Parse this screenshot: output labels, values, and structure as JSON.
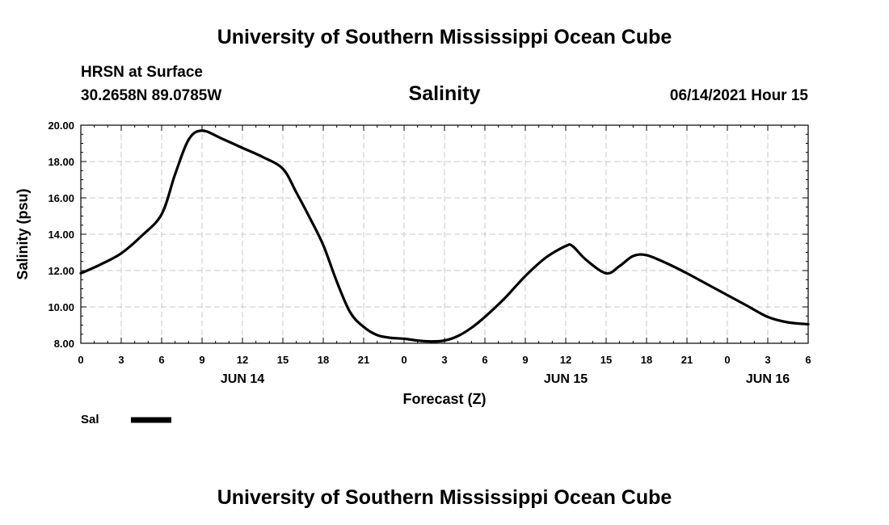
{
  "header": {
    "title": "University of Southern Mississippi Ocean Cube",
    "station": "HRSN at Surface",
    "location": "30.2658N  89.0785W",
    "run_time": "06/14/2021 Hour 15"
  },
  "footer": {
    "title": "University of Southern Mississippi Ocean Cube"
  },
  "chart_data": {
    "type": "line",
    "title": "Salinity",
    "xlabel": "Forecast (Z)",
    "ylabel": "Salinity (psu)",
    "x_unit": "hours",
    "xlim": [
      0,
      54
    ],
    "ylim": [
      8,
      20
    ],
    "grid": true,
    "legend_placement": "bottom-left",
    "x_ticks": [
      {
        "value": 0,
        "label": "0"
      },
      {
        "value": 3,
        "label": "3"
      },
      {
        "value": 6,
        "label": "6"
      },
      {
        "value": 9,
        "label": "9"
      },
      {
        "value": 12,
        "label": "12"
      },
      {
        "value": 15,
        "label": "15"
      },
      {
        "value": 18,
        "label": "18"
      },
      {
        "value": 21,
        "label": "21"
      },
      {
        "value": 24,
        "label": "0"
      },
      {
        "value": 27,
        "label": "3"
      },
      {
        "value": 30,
        "label": "6"
      },
      {
        "value": 33,
        "label": "9"
      },
      {
        "value": 36,
        "label": "12"
      },
      {
        "value": 39,
        "label": "15"
      },
      {
        "value": 42,
        "label": "18"
      },
      {
        "value": 45,
        "label": "21"
      },
      {
        "value": 48,
        "label": "0"
      },
      {
        "value": 51,
        "label": "3"
      },
      {
        "value": 54,
        "label": "6"
      }
    ],
    "date_labels": [
      {
        "value": 12,
        "label": "JUN 14"
      },
      {
        "value": 36,
        "label": "JUN 15"
      },
      {
        "value": 51,
        "label": "JUN 16"
      }
    ],
    "y_ticks": [
      {
        "value": 8,
        "label": "8.00"
      },
      {
        "value": 10,
        "label": "10.00"
      },
      {
        "value": 12,
        "label": "12.00"
      },
      {
        "value": 14,
        "label": "14.00"
      },
      {
        "value": 16,
        "label": "16.00"
      },
      {
        "value": 18,
        "label": "18.00"
      },
      {
        "value": 20,
        "label": "20.00"
      }
    ],
    "series": [
      {
        "name": "Sal",
        "color": "#000000",
        "x": [
          0,
          1.5,
          3,
          4.5,
          6,
          7,
          8,
          9,
          10.5,
          12,
          13.5,
          15,
          16,
          17,
          18,
          19,
          20,
          21,
          22,
          23,
          24,
          25,
          26,
          27,
          28,
          29,
          30,
          31.5,
          33,
          34.5,
          36,
          36.5,
          37.5,
          39,
          40,
          41,
          42,
          43.5,
          45,
          46.5,
          48,
          49.5,
          51,
          52.5,
          54
        ],
        "y": [
          11.85,
          12.35,
          12.95,
          13.9,
          15.1,
          17.3,
          19.2,
          19.7,
          19.25,
          18.75,
          18.25,
          17.6,
          16.3,
          14.9,
          13.4,
          11.4,
          9.7,
          8.9,
          8.45,
          8.3,
          8.25,
          8.15,
          8.1,
          8.15,
          8.4,
          8.85,
          9.45,
          10.5,
          11.7,
          12.7,
          13.35,
          13.35,
          12.6,
          11.85,
          12.25,
          12.8,
          12.85,
          12.4,
          11.85,
          11.25,
          10.65,
          10.05,
          9.45,
          9.15,
          9.05
        ]
      }
    ]
  }
}
